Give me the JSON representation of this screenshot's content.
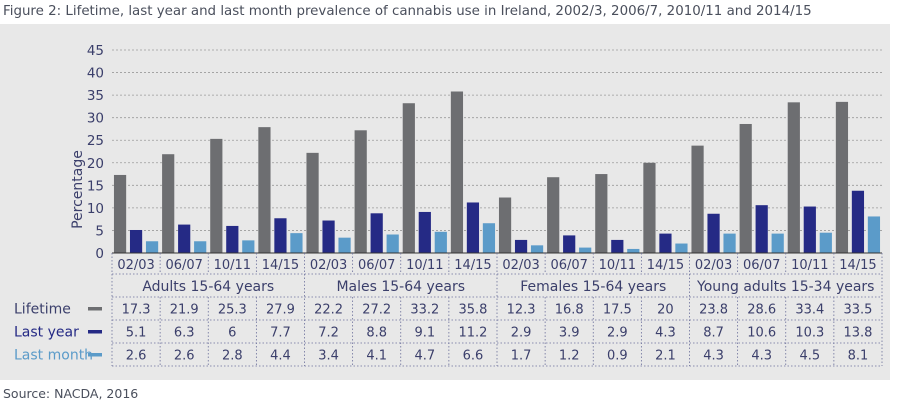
{
  "title": "Figure 2: Lifetime, last year and last month prevalence of cannabis use in Ireland, 2002/3, 2006/7, 2010/11 and 2014/15",
  "source": "Source: NACDA, 2016",
  "colors": {
    "lifetime": "#6d6e71",
    "last_year": "#252a85",
    "last_month": "#5b9bc9",
    "panel_bg": "#e8e8e8",
    "text": "#3b3f6b"
  },
  "chart_data": {
    "type": "bar",
    "ylabel": "Percentage",
    "ylim": [
      0,
      45
    ],
    "yticks": [
      0,
      5,
      10,
      15,
      20,
      25,
      30,
      35,
      40,
      45
    ],
    "grid": true,
    "categories": [
      "02/03",
      "06/07",
      "10/11",
      "14/15",
      "02/03",
      "06/07",
      "10/11",
      "14/15",
      "02/03",
      "06/07",
      "10/11",
      "14/15",
      "02/03",
      "06/07",
      "10/11",
      "14/15"
    ],
    "groups": [
      {
        "label": "Adults 15-64 years"
      },
      {
        "label": "Males 15-64 years"
      },
      {
        "label": "Females 15-64 years"
      },
      {
        "label": "Young adults 15-34 years"
      }
    ],
    "series": [
      {
        "name": "Lifetime",
        "values": [
          17.3,
          21.9,
          25.3,
          27.9,
          22.2,
          27.2,
          33.2,
          35.8,
          12.3,
          16.8,
          17.5,
          20,
          23.8,
          28.6,
          33.4,
          33.5
        ]
      },
      {
        "name": "Last year",
        "values": [
          5.1,
          6.3,
          6,
          7.7,
          7.2,
          8.8,
          9.1,
          11.2,
          2.9,
          3.9,
          2.9,
          4.3,
          8.7,
          10.6,
          10.3,
          13.8
        ]
      },
      {
        "name": "Last month",
        "values": [
          2.6,
          2.6,
          2.8,
          4.4,
          3.4,
          4.1,
          4.7,
          6.6,
          1.7,
          1.2,
          0.9,
          2.1,
          4.3,
          4.3,
          4.5,
          8.1
        ]
      }
    ]
  }
}
